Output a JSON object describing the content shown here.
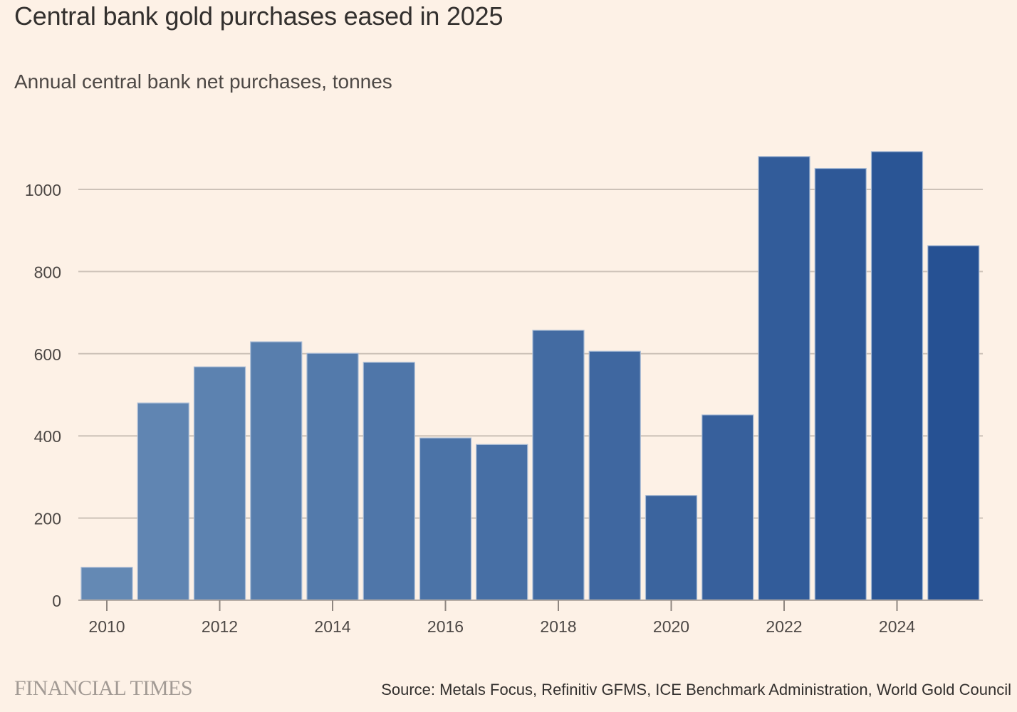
{
  "header": {
    "title": "Central bank gold purchases eased in 2025",
    "subtitle": "Annual central bank net purchases, tonnes"
  },
  "footer": {
    "brand": "FINANCIAL TIMES",
    "source": "Source: Metals Focus, Refinitiv GFMS, ICE Benchmark Administration, World Gold Council"
  },
  "chart_data": {
    "type": "bar",
    "title": "Central bank gold purchases eased in 2025",
    "subtitle": "Annual central bank net purchases, tonnes",
    "xlabel": "",
    "ylabel": "tonnes",
    "categories": [
      "2010",
      "2011",
      "2012",
      "2013",
      "2014",
      "2015",
      "2016",
      "2017",
      "2018",
      "2019",
      "2020",
      "2021",
      "2022",
      "2023",
      "2024",
      "2025"
    ],
    "values": [
      80,
      480,
      568,
      629,
      601,
      579,
      395,
      379,
      657,
      606,
      255,
      451,
      1080,
      1051,
      1092,
      863
    ],
    "ylim": [
      0,
      1100
    ],
    "yticks": [
      0,
      200,
      400,
      600,
      800,
      1000
    ],
    "xtick_labels": [
      "2010",
      "2012",
      "2014",
      "2016",
      "2018",
      "2020",
      "2022",
      "2024"
    ],
    "grid": true,
    "legend": "none",
    "colors": {
      "start": "#6489b4",
      "end": "#265193",
      "grid": "#cdc2b8",
      "axis": "#b7ada5"
    }
  }
}
